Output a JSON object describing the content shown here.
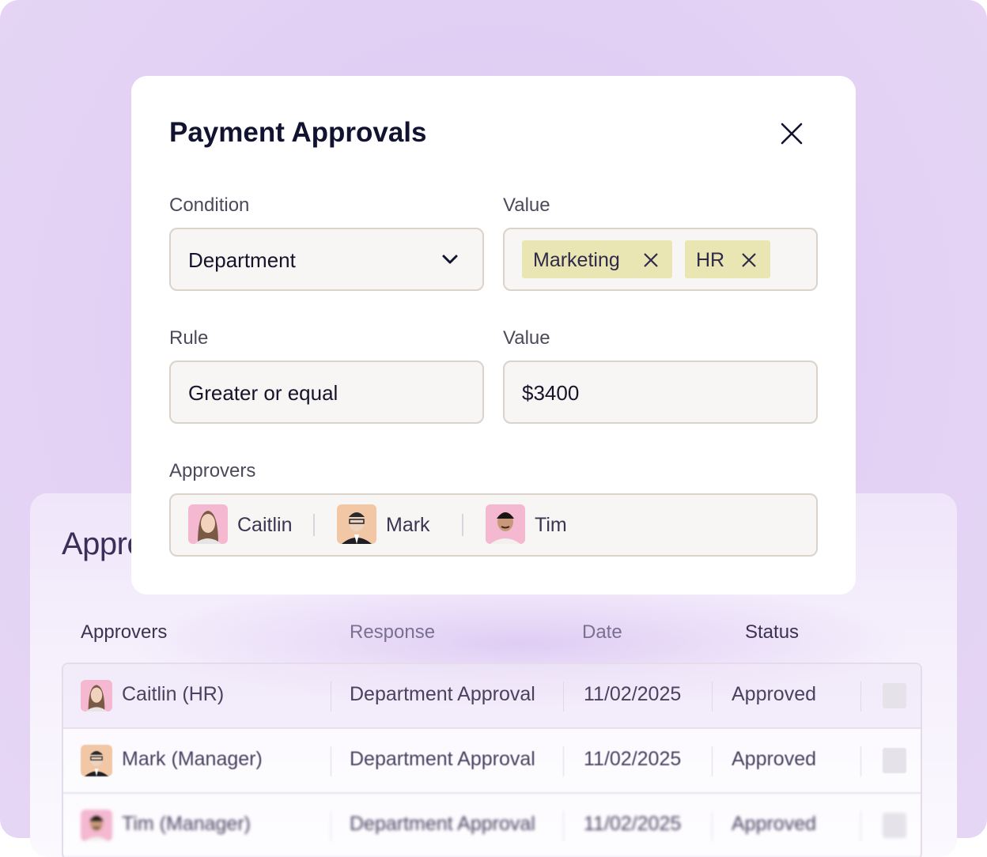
{
  "modal": {
    "title": "Payment Approvals",
    "close_icon": "close-icon",
    "condition_label": "Condition",
    "condition_value": "Department",
    "value_label_1": "Value",
    "tags": [
      "Marketing",
      "HR"
    ],
    "rule_label": "Rule",
    "rule_value": "Greater or equal",
    "value_label_2": "Value",
    "amount": "$3400",
    "approvers_label": "Approvers",
    "approvers": [
      "Caitlin",
      "Mark",
      "Tim"
    ]
  },
  "background_card": {
    "title": "Approvals",
    "columns": [
      "Approvers",
      "Response",
      "Date",
      "Status"
    ],
    "rows": [
      {
        "name": "Caitlin (HR)",
        "response": "Department Approval",
        "date": "11/02/2025",
        "status": "Approved"
      },
      {
        "name": "Mark (Manager)",
        "response": "Department Approval",
        "date": "11/02/2025",
        "status": "Approved"
      },
      {
        "name": "Tim (Manager)",
        "response": "Department Approval",
        "date": "11/02/2025",
        "status": "Approved"
      }
    ]
  },
  "colors": {
    "background": "#e3d2f4",
    "tag": "#e9e6b4",
    "title": "#121330",
    "avatar_pink": "#f4b8d0",
    "avatar_peach": "#f2c7a5"
  }
}
